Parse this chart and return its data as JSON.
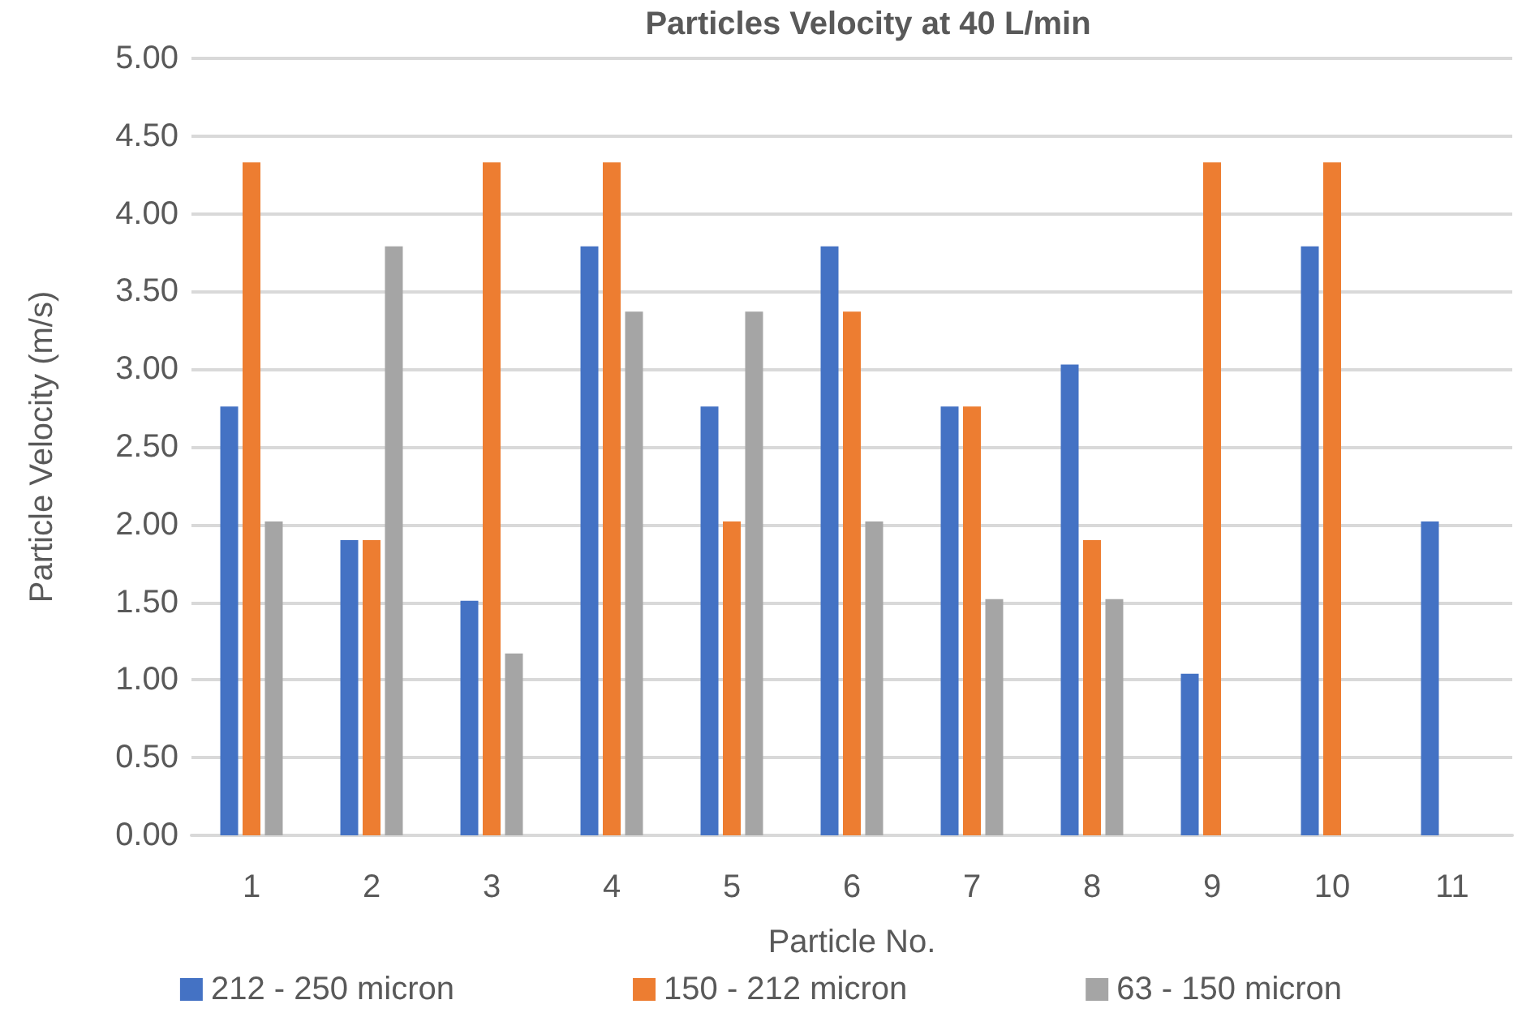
{
  "chart_data": {
    "type": "bar",
    "title": "Particles Velocity at 40 L/min",
    "xlabel": "Particle No.",
    "ylabel": "Particle Velocity (m/s)",
    "categories": [
      "1",
      "2",
      "3",
      "4",
      "5",
      "6",
      "7",
      "8",
      "9",
      "10",
      "11"
    ],
    "series": [
      {
        "name": "212 - 250 micron",
        "color": "#4472c4",
        "values": [
          2.76,
          1.9,
          1.51,
          3.79,
          2.76,
          3.79,
          2.76,
          3.03,
          1.04,
          3.79,
          2.02
        ]
      },
      {
        "name": "150 - 212 micron",
        "color": "#ed7d31",
        "values": [
          4.33,
          1.9,
          4.33,
          4.33,
          2.02,
          3.37,
          2.76,
          1.9,
          4.33,
          4.33,
          null
        ]
      },
      {
        "name": "63 - 150 micron",
        "color": "#a5a5a5",
        "values": [
          2.02,
          3.79,
          1.17,
          3.37,
          3.37,
          2.02,
          1.52,
          1.52,
          null,
          null,
          null
        ]
      }
    ],
    "ylim": [
      0,
      5
    ],
    "yticks": [
      {
        "value": 0,
        "label": "0.00"
      },
      {
        "value": 0.5,
        "label": "0.50"
      },
      {
        "value": 1,
        "label": "1.00"
      },
      {
        "value": 1.5,
        "label": "1.50"
      },
      {
        "value": 2,
        "label": "2.00"
      },
      {
        "value": 2.5,
        "label": "2.50"
      },
      {
        "value": 3,
        "label": "3.00"
      },
      {
        "value": 3.5,
        "label": "3.50"
      },
      {
        "value": 4,
        "label": "4.00"
      },
      {
        "value": 4.5,
        "label": "4.50"
      },
      {
        "value": 5,
        "label": "5.00"
      }
    ],
    "grid": "y",
    "legend": "bottom"
  }
}
